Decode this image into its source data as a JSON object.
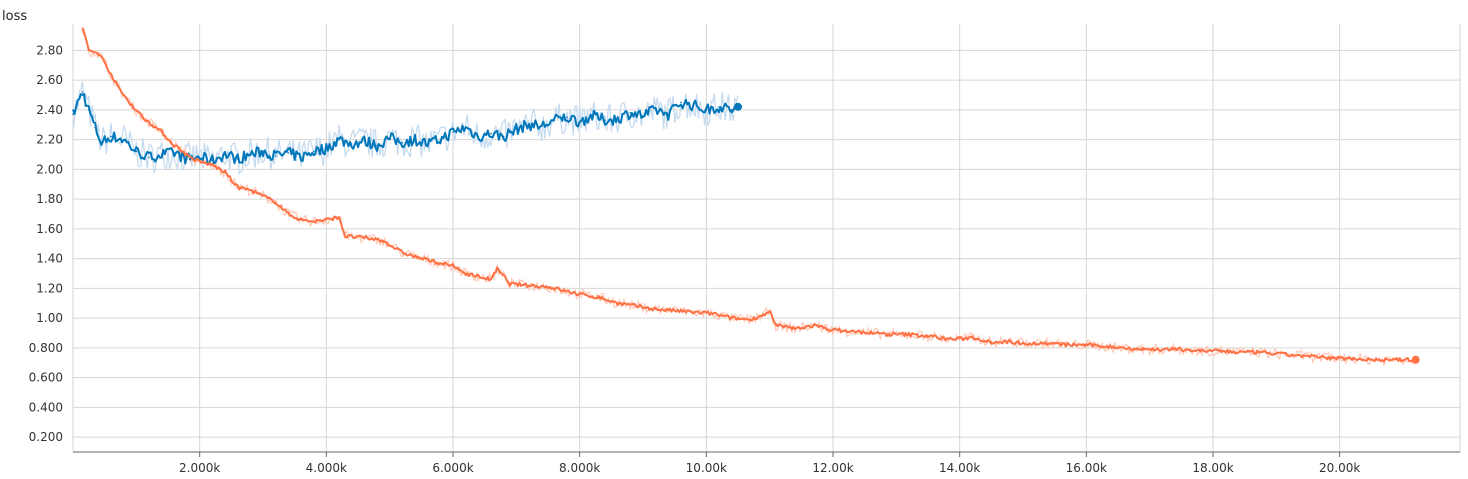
{
  "chart_data": {
    "type": "line",
    "title": "loss",
    "xlabel": "",
    "ylabel": "",
    "xlim": [
      0,
      21900
    ],
    "ylim": [
      0.1,
      2.95
    ],
    "grid": true,
    "x_ticks": [
      2000,
      4000,
      6000,
      8000,
      10000,
      12000,
      14000,
      16000,
      18000,
      20000
    ],
    "x_tick_labels": [
      "2.000k",
      "4.000k",
      "6.000k",
      "8.000k",
      "10.00k",
      "12.00k",
      "14.00k",
      "16.00k",
      "18.00k",
      "20.00k"
    ],
    "y_ticks": [
      0.2,
      0.4,
      0.6,
      0.8,
      1.0,
      1.2,
      1.4,
      1.6,
      1.8,
      2.0,
      2.2,
      2.4,
      2.6,
      2.8
    ],
    "y_tick_labels": [
      "0.200",
      "0.400",
      "0.600",
      "0.800",
      "1.00",
      "1.20",
      "1.40",
      "1.60",
      "1.80",
      "2.00",
      "2.20",
      "2.40",
      "2.60",
      "2.80"
    ],
    "series": [
      {
        "color": "#0077bb",
        "raw_color": "#c6dbef",
        "x": [
          0,
          150,
          250,
          350,
          450,
          600,
          800,
          1000,
          1200,
          1400,
          1600,
          1800,
          2000,
          2200,
          2400,
          2600,
          2800,
          3000,
          3200,
          3400,
          3600,
          3800,
          4000,
          4200,
          4400,
          4600,
          4800,
          5000,
          5200,
          5400,
          5600,
          5800,
          6000,
          6200,
          6400,
          6600,
          6800,
          7000,
          7200,
          7400,
          7600,
          7800,
          8000,
          8200,
          8400,
          8600,
          8800,
          9000,
          9200,
          9400,
          9600,
          9800,
          10000,
          10200,
          10400,
          10500
        ],
        "y": [
          2.37,
          2.52,
          2.4,
          2.28,
          2.18,
          2.22,
          2.2,
          2.12,
          2.08,
          2.1,
          2.11,
          2.07,
          2.08,
          2.06,
          2.1,
          2.07,
          2.1,
          2.12,
          2.09,
          2.11,
          2.08,
          2.12,
          2.14,
          2.2,
          2.17,
          2.19,
          2.16,
          2.21,
          2.18,
          2.2,
          2.17,
          2.2,
          2.25,
          2.28,
          2.22,
          2.24,
          2.22,
          2.27,
          2.3,
          2.29,
          2.33,
          2.35,
          2.32,
          2.36,
          2.33,
          2.34,
          2.38,
          2.36,
          2.4,
          2.37,
          2.45,
          2.43,
          2.4,
          2.42,
          2.4,
          2.42
        ]
      },
      {
        "color": "#ff7043",
        "raw_color": "#ffccbc",
        "x": [
          150,
          250,
          400,
          500,
          600,
          700,
          800,
          950,
          1100,
          1250,
          1400,
          1550,
          1700,
          1850,
          2000,
          2200,
          2400,
          2600,
          2800,
          3000,
          3200,
          3400,
          3600,
          3800,
          4000,
          4200,
          4300,
          4600,
          4900,
          5200,
          5500,
          5800,
          6000,
          6200,
          6400,
          6600,
          6700,
          6900,
          7200,
          7500,
          7800,
          8000,
          8300,
          8600,
          8900,
          9200,
          9500,
          9800,
          10100,
          10400,
          10700,
          11000,
          11100,
          11400,
          11700,
          12000,
          12300,
          12600,
          12900,
          13200,
          13500,
          13800,
          14000,
          14200,
          14500,
          14800,
          15100,
          15400,
          15700,
          16000,
          16300,
          16600,
          16900,
          17200,
          17500,
          17800,
          18100,
          18400,
          18700,
          19000,
          19300,
          19600,
          19900,
          20200,
          20500,
          20800,
          21000,
          21200
        ],
        "y": [
          2.95,
          2.8,
          2.78,
          2.72,
          2.64,
          2.56,
          2.5,
          2.42,
          2.35,
          2.3,
          2.25,
          2.18,
          2.13,
          2.08,
          2.05,
          2.03,
          1.98,
          1.88,
          1.86,
          1.82,
          1.78,
          1.7,
          1.66,
          1.65,
          1.66,
          1.68,
          1.55,
          1.54,
          1.52,
          1.44,
          1.4,
          1.37,
          1.35,
          1.3,
          1.28,
          1.26,
          1.33,
          1.23,
          1.22,
          1.21,
          1.18,
          1.16,
          1.14,
          1.1,
          1.08,
          1.06,
          1.05,
          1.04,
          1.03,
          1.0,
          0.99,
          1.04,
          0.95,
          0.93,
          0.95,
          0.92,
          0.91,
          0.9,
          0.89,
          0.89,
          0.88,
          0.86,
          0.86,
          0.87,
          0.84,
          0.84,
          0.83,
          0.83,
          0.82,
          0.82,
          0.81,
          0.8,
          0.79,
          0.79,
          0.79,
          0.78,
          0.78,
          0.77,
          0.77,
          0.76,
          0.75,
          0.74,
          0.73,
          0.73,
          0.72,
          0.72,
          0.72,
          0.72
        ]
      }
    ]
  }
}
